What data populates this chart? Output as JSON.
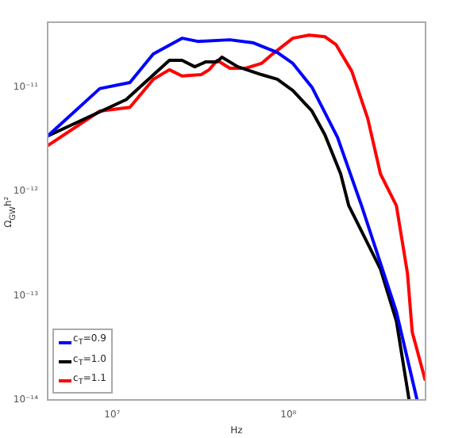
{
  "chart_data": {
    "type": "line",
    "xlabel": "Hz",
    "ylabel": "Ω$_{GW}$h²",
    "log": "xy",
    "grid": false,
    "legend": "bottom left",
    "marker": "none",
    "line_style": "solid",
    "xlim": [
      4300000.0,
      600000000.0
    ],
    "ylim": [
      1e-14,
      4.2e-11
    ],
    "xticks": [
      {
        "value": 10000000,
        "label": "10⁷"
      },
      {
        "value": 100000000,
        "label": "10⁸"
      }
    ],
    "yticks": [
      {
        "value": 1e-14,
        "label": "10⁻¹⁴"
      },
      {
        "value": 1e-13,
        "label": "10⁻¹³"
      },
      {
        "value": 1e-12,
        "label": "10⁻¹²"
      },
      {
        "value": 1e-11,
        "label": "10⁻¹¹"
      }
    ],
    "series": [
      {
        "name": "c$_{T}$=0.9",
        "color": "#0000ff",
        "x": [
          4300000.0,
          8500000.0,
          12600000.0,
          17100000.0,
          24900000.0,
          30600000.0,
          46500000.0,
          63400000.0,
          86500000.0,
          106000000.0,
          136000000.0,
          190000000.0,
          260000000.0,
          410000000.0,
          537000000.0
        ],
        "values": [
          3.4e-12,
          9.7e-12,
          1.11e-11,
          2.08e-11,
          2.95e-11,
          2.75e-11,
          2.85e-11,
          2.66e-11,
          2.15e-11,
          1.69e-11,
          1e-11,
          3.3e-12,
          7.3e-13,
          7e-14,
          1e-14
        ]
      },
      {
        "name": "c$_{T}$=1.0",
        "color": "#000000",
        "x": [
          4300000.0,
          12000000.0,
          21100000.0,
          24900000.0,
          29400000.0,
          34000000.0,
          39400000.0,
          41900000.0,
          51600000.0,
          70300000.0,
          86500000.0,
          106000000.0,
          136000000.0,
          161000000.0,
          198000000.0,
          220000000.0,
          333000000.0,
          410000000.0,
          484000000.0
        ],
        "values": [
          3.4e-12,
          7.6e-12,
          1.81e-11,
          1.81e-11,
          1.57e-11,
          1.75e-11,
          1.75e-11,
          1.94e-11,
          1.57e-11,
          1.32e-11,
          1.19e-11,
          9.3e-12,
          5.9e-12,
          3.5e-12,
          1.47e-12,
          7.3e-13,
          1.8e-13,
          5.7e-14,
          1e-14
        ]
      },
      {
        "name": "c$_{T}$=1.1",
        "color": "#ff0000",
        "x": [
          4300000.0,
          8500000.0,
          12600000.0,
          17100000.0,
          21100000.0,
          24900000.0,
          32000000.0,
          35500000.0,
          39400000.0,
          46500000.0,
          57200000.0,
          70300000.0,
          81300000.0,
          106000000.0,
          131000000.0,
          161000000.0,
          186000000.0,
          229000000.0,
          282000000.0,
          333000000.0,
          410000000.0,
          474000000.0,
          504000000.0,
          596000000.0
        ],
        "values": [
          2.75e-12,
          5.9e-12,
          6.4e-12,
          1.19e-11,
          1.47e-11,
          1.28e-11,
          1.32e-11,
          1.47e-11,
          1.81e-11,
          1.52e-11,
          1.52e-11,
          1.69e-11,
          2.08e-11,
          2.95e-11,
          3.16e-11,
          3.05e-11,
          2.57e-11,
          1.42e-11,
          5e-12,
          1.47e-12,
          7.3e-13,
          1.63e-13,
          4.5e-14,
          1.57e-14
        ]
      }
    ]
  }
}
